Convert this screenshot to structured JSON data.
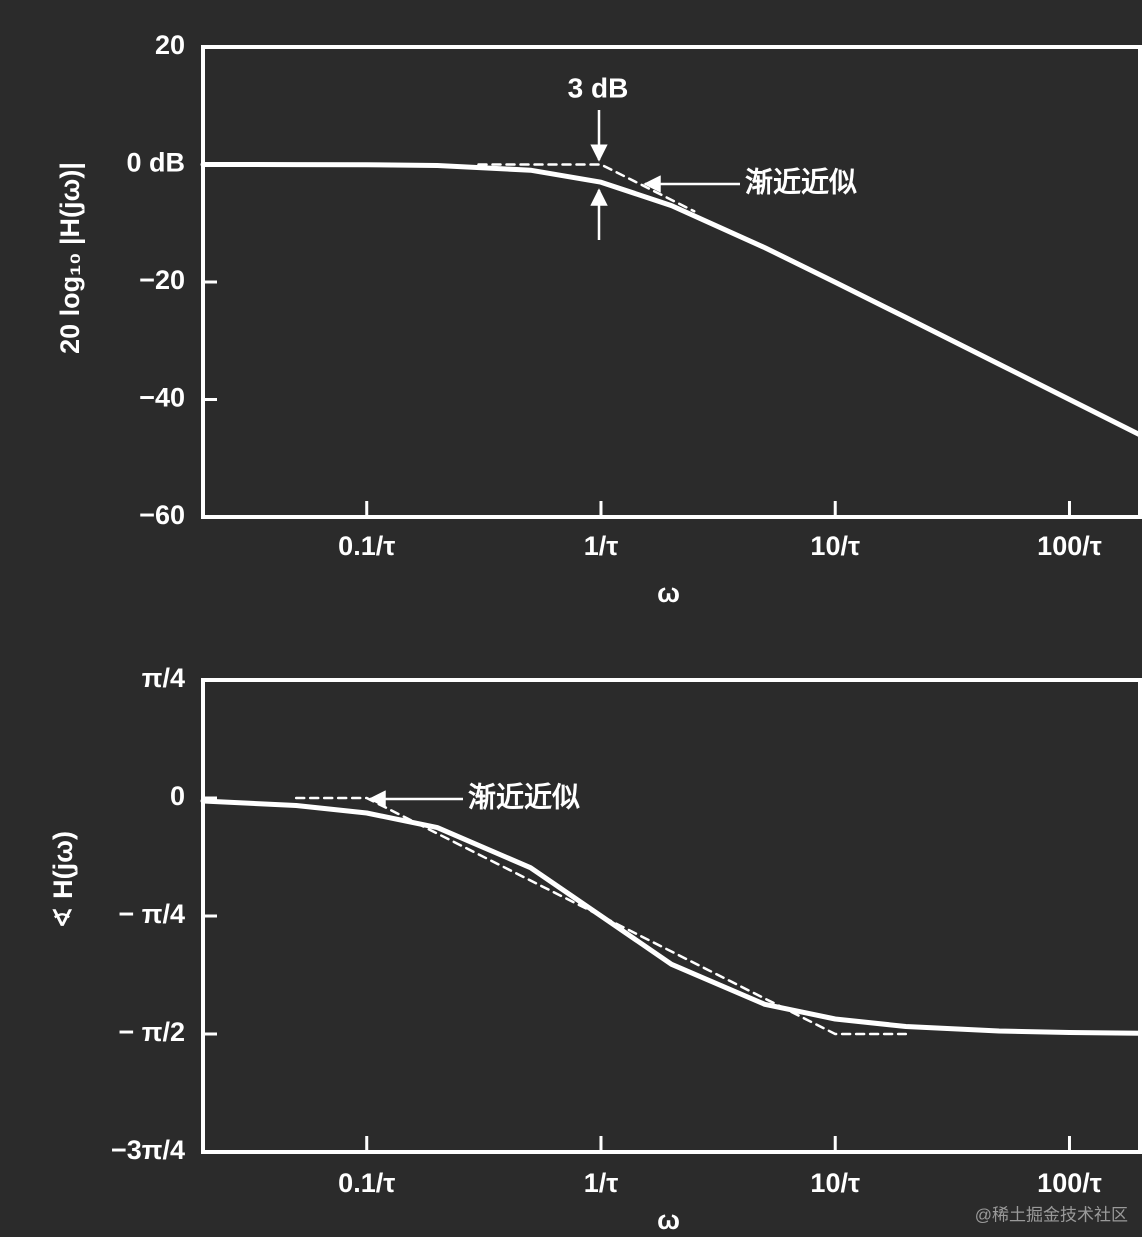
{
  "chart_data": [
    {
      "type": "line",
      "xlabel": "ω",
      "ylabel": "20 log₁₀ |H(jω)|",
      "xscale": "log",
      "xlim": [
        0.02,
        200
      ],
      "xticks": [
        {
          "value": 0.1,
          "label": "0.1/τ"
        },
        {
          "value": 1,
          "label": "1/τ"
        },
        {
          "value": 10,
          "label": "10/τ"
        },
        {
          "value": 100,
          "label": "100/τ"
        }
      ],
      "ylim": [
        -60,
        20
      ],
      "yticks": [
        20,
        {
          "value": 0,
          "label": "0 dB"
        },
        {
          "value": -20,
          "label": "−20"
        },
        {
          "value": -40,
          "label": "−40"
        },
        {
          "value": -60,
          "label": "−60"
        }
      ],
      "series": [
        {
          "style": "solid",
          "color": "#ffffff",
          "x": [
            0.02,
            0.05,
            0.1,
            0.2,
            0.5,
            1,
            2,
            5,
            10,
            20,
            50,
            100,
            200
          ],
          "values": [
            0,
            -0.01,
            -0.04,
            -0.17,
            -0.97,
            -3.01,
            -6.99,
            -14.15,
            -20.04,
            -26.03,
            -33.98,
            -40,
            -46.02
          ]
        },
        {
          "style": "dashed",
          "color": "#ffffff",
          "x": [
            0.3,
            1,
            2.5
          ],
          "values": [
            0,
            0,
            -7.96
          ]
        }
      ],
      "annotations": [
        {
          "text": "3 dB"
        },
        {
          "text": "渐近近似"
        }
      ]
    },
    {
      "type": "line",
      "xlabel": "ω",
      "ylabel": "∢ H(jω)",
      "xscale": "log",
      "xlim": [
        0.02,
        200
      ],
      "xticks": [
        {
          "value": 0.1,
          "label": "0.1/τ"
        },
        {
          "value": 1,
          "label": "1/τ"
        },
        {
          "value": 10,
          "label": "10/τ"
        },
        {
          "value": 100,
          "label": "100/τ"
        }
      ],
      "ylim": [
        -2.3562,
        0.7854
      ],
      "yticks": [
        {
          "value": 0.7854,
          "label": "π/4"
        },
        0,
        {
          "value": -0.7854,
          "label": "− π/4"
        },
        {
          "value": -1.5708,
          "label": "− π/2"
        },
        {
          "value": -2.3562,
          "label": "−3π/4"
        }
      ],
      "series": [
        {
          "style": "solid",
          "color": "#ffffff",
          "x": [
            0.02,
            0.05,
            0.1,
            0.2,
            0.5,
            1,
            2,
            5,
            10,
            20,
            50,
            100,
            200
          ],
          "values": [
            -0.02,
            -0.05,
            -0.0997,
            -0.197,
            -0.464,
            -0.785,
            -1.107,
            -1.373,
            -1.471,
            -1.521,
            -1.551,
            -1.561,
            -1.566
          ]
        },
        {
          "style": "dashed",
          "color": "#ffffff",
          "x": [
            0.05,
            0.1,
            10,
            20
          ],
          "values": [
            0,
            0,
            -1.5708,
            -1.5708
          ]
        }
      ],
      "annotations": [
        {
          "text": "渐近近似"
        }
      ],
      "watermark": "@稀土掘金技术社区"
    }
  ]
}
